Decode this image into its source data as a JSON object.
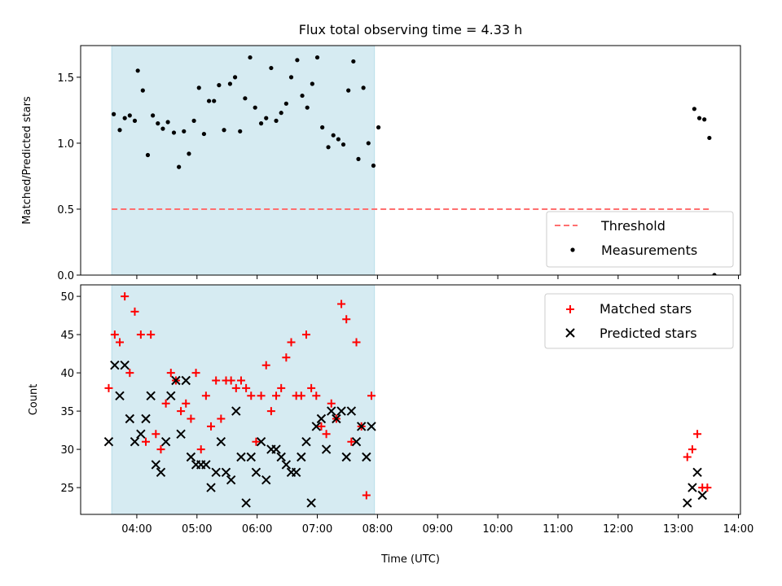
{
  "title": "Flux total observing time = 4.33 h",
  "x_label": "Time (UTC)",
  "x_ticks": [
    "04:00",
    "05:00",
    "06:00",
    "07:00",
    "08:00",
    "09:00",
    "10:00",
    "11:00",
    "12:00",
    "13:00",
    "14:00"
  ],
  "colors": {
    "shade": "#add8e6",
    "threshold": "#ff6f6f",
    "measurement": "#000000",
    "matched": "#ff0000",
    "predicted": "#000000"
  },
  "chart_data": [
    {
      "type": "scatter",
      "ylabel": "Matched/Predicted stars",
      "ylim": [
        0,
        1.74
      ],
      "yticks": [
        "0.0",
        "0.5",
        "1.0",
        "1.5"
      ],
      "xlim": [
        "03:04",
        "14:02"
      ],
      "shaded_interval": [
        "03:35",
        "07:57"
      ],
      "threshold": {
        "name": "Threshold",
        "y": 0.5,
        "x_range": [
          "03:35",
          "13:33"
        ]
      },
      "legend": [
        "Threshold",
        "Measurements"
      ],
      "legend_position": "lower right",
      "series": [
        {
          "name": "Measurements",
          "points": [
            [
              "03:37",
              1.22
            ],
            [
              "03:43",
              1.1
            ],
            [
              "03:48",
              1.19
            ],
            [
              "03:53",
              1.21
            ],
            [
              "03:58",
              1.17
            ],
            [
              "04:01",
              1.55
            ],
            [
              "04:06",
              1.4
            ],
            [
              "04:11",
              0.91
            ],
            [
              "04:16",
              1.21
            ],
            [
              "04:21",
              1.15
            ],
            [
              "04:26",
              1.11
            ],
            [
              "04:31",
              1.16
            ],
            [
              "04:37",
              1.08
            ],
            [
              "04:42",
              0.82
            ],
            [
              "04:47",
              1.09
            ],
            [
              "04:52",
              0.92
            ],
            [
              "04:57",
              1.17
            ],
            [
              "05:02",
              1.42
            ],
            [
              "05:07",
              1.07
            ],
            [
              "05:12",
              1.32
            ],
            [
              "05:17",
              1.32
            ],
            [
              "05:22",
              1.44
            ],
            [
              "05:27",
              1.1
            ],
            [
              "05:33",
              1.45
            ],
            [
              "05:38",
              1.5
            ],
            [
              "05:43",
              1.09
            ],
            [
              "05:48",
              1.34
            ],
            [
              "05:53",
              1.65
            ],
            [
              "05:58",
              1.27
            ],
            [
              "06:04",
              1.15
            ],
            [
              "06:09",
              1.19
            ],
            [
              "06:14",
              1.57
            ],
            [
              "06:19",
              1.17
            ],
            [
              "06:24",
              1.23
            ],
            [
              "06:29",
              1.3
            ],
            [
              "06:34",
              1.5
            ],
            [
              "06:40",
              1.63
            ],
            [
              "06:45",
              1.36
            ],
            [
              "06:50",
              1.27
            ],
            [
              "06:55",
              1.45
            ],
            [
              "07:00",
              1.65
            ],
            [
              "07:05",
              1.12
            ],
            [
              "07:11",
              0.97
            ],
            [
              "07:16",
              1.06
            ],
            [
              "07:21",
              1.03
            ],
            [
              "07:26",
              0.99
            ],
            [
              "07:31",
              1.4
            ],
            [
              "07:36",
              1.62
            ],
            [
              "07:41",
              0.88
            ],
            [
              "07:46",
              1.42
            ],
            [
              "07:51",
              1.0
            ],
            [
              "07:56",
              0.83
            ],
            [
              "08:01",
              1.12
            ],
            [
              "13:16",
              1.26
            ],
            [
              "13:21",
              1.19
            ],
            [
              "13:26",
              1.18
            ],
            [
              "13:31",
              1.04
            ],
            [
              "13:36",
              0.0
            ]
          ]
        }
      ]
    },
    {
      "type": "scatter",
      "ylabel": "Count",
      "ylim": [
        21.5,
        51.5
      ],
      "yticks": [
        "25",
        "30",
        "35",
        "40",
        "45",
        "50"
      ],
      "xlim": [
        "03:04",
        "14:02"
      ],
      "shaded_interval": [
        "03:35",
        "07:57"
      ],
      "legend": [
        "Matched stars",
        "Predicted stars"
      ],
      "legend_position": "upper right",
      "series": [
        {
          "name": "Matched stars",
          "marker": "+",
          "points": [
            [
              "03:32",
              38
            ],
            [
              "03:38",
              45
            ],
            [
              "03:43",
              44
            ],
            [
              "03:48",
              50
            ],
            [
              "03:53",
              40
            ],
            [
              "03:58",
              48
            ],
            [
              "04:04",
              45
            ],
            [
              "04:09",
              31
            ],
            [
              "04:14",
              45
            ],
            [
              "04:19",
              32
            ],
            [
              "04:24",
              30
            ],
            [
              "04:29",
              36
            ],
            [
              "04:34",
              40
            ],
            [
              "04:39",
              39
            ],
            [
              "04:44",
              35
            ],
            [
              "04:49",
              36
            ],
            [
              "04:54",
              34
            ],
            [
              "04:59",
              40
            ],
            [
              "05:04",
              30
            ],
            [
              "05:09",
              37
            ],
            [
              "05:14",
              33
            ],
            [
              "05:19",
              39
            ],
            [
              "05:24",
              34
            ],
            [
              "05:29",
              39
            ],
            [
              "05:34",
              39
            ],
            [
              "05:39",
              38
            ],
            [
              "05:44",
              39
            ],
            [
              "05:49",
              38
            ],
            [
              "05:54",
              37
            ],
            [
              "05:59",
              31
            ],
            [
              "06:04",
              37
            ],
            [
              "06:09",
              41
            ],
            [
              "06:14",
              35
            ],
            [
              "06:19",
              37
            ],
            [
              "06:24",
              38
            ],
            [
              "06:29",
              42
            ],
            [
              "06:34",
              44
            ],
            [
              "06:39",
              37
            ],
            [
              "06:44",
              37
            ],
            [
              "06:49",
              45
            ],
            [
              "06:54",
              38
            ],
            [
              "06:59",
              37
            ],
            [
              "07:04",
              33
            ],
            [
              "07:09",
              32
            ],
            [
              "07:14",
              36
            ],
            [
              "07:19",
              34
            ],
            [
              "07:24",
              49
            ],
            [
              "07:29",
              47
            ],
            [
              "07:34",
              31
            ],
            [
              "07:39",
              44
            ],
            [
              "07:44",
              33
            ],
            [
              "07:49",
              24
            ],
            [
              "07:54",
              37
            ],
            [
              "13:09",
              29
            ],
            [
              "13:14",
              30
            ],
            [
              "13:19",
              32
            ],
            [
              "13:24",
              25
            ],
            [
              "13:29",
              25
            ]
          ]
        },
        {
          "name": "Predicted stars",
          "marker": "x",
          "points": [
            [
              "03:32",
              31
            ],
            [
              "03:38",
              41
            ],
            [
              "03:43",
              37
            ],
            [
              "03:48",
              41
            ],
            [
              "03:53",
              34
            ],
            [
              "03:58",
              31
            ],
            [
              "04:04",
              32
            ],
            [
              "04:09",
              34
            ],
            [
              "04:14",
              37
            ],
            [
              "04:19",
              28
            ],
            [
              "04:24",
              27
            ],
            [
              "04:29",
              31
            ],
            [
              "04:34",
              37
            ],
            [
              "04:39",
              39
            ],
            [
              "04:44",
              32
            ],
            [
              "04:49",
              39
            ],
            [
              "04:54",
              29
            ],
            [
              "04:59",
              28
            ],
            [
              "05:04",
              28
            ],
            [
              "05:09",
              28
            ],
            [
              "05:14",
              25
            ],
            [
              "05:19",
              27
            ],
            [
              "05:24",
              31
            ],
            [
              "05:29",
              27
            ],
            [
              "05:34",
              26
            ],
            [
              "05:39",
              35
            ],
            [
              "05:44",
              29
            ],
            [
              "05:49",
              23
            ],
            [
              "05:54",
              29
            ],
            [
              "05:59",
              27
            ],
            [
              "06:04",
              31
            ],
            [
              "06:09",
              26
            ],
            [
              "06:14",
              30
            ],
            [
              "06:19",
              30
            ],
            [
              "06:24",
              29
            ],
            [
              "06:29",
              28
            ],
            [
              "06:34",
              27
            ],
            [
              "06:39",
              27
            ],
            [
              "06:44",
              29
            ],
            [
              "06:49",
              31
            ],
            [
              "06:54",
              23
            ],
            [
              "06:59",
              33
            ],
            [
              "07:04",
              34
            ],
            [
              "07:09",
              30
            ],
            [
              "07:14",
              35
            ],
            [
              "07:19",
              34
            ],
            [
              "07:24",
              35
            ],
            [
              "07:29",
              29
            ],
            [
              "07:34",
              35
            ],
            [
              "07:39",
              31
            ],
            [
              "07:44",
              33
            ],
            [
              "07:49",
              29
            ],
            [
              "07:54",
              33
            ],
            [
              "13:09",
              23
            ],
            [
              "13:14",
              25
            ],
            [
              "13:19",
              27
            ],
            [
              "13:24",
              24
            ]
          ]
        }
      ]
    }
  ]
}
